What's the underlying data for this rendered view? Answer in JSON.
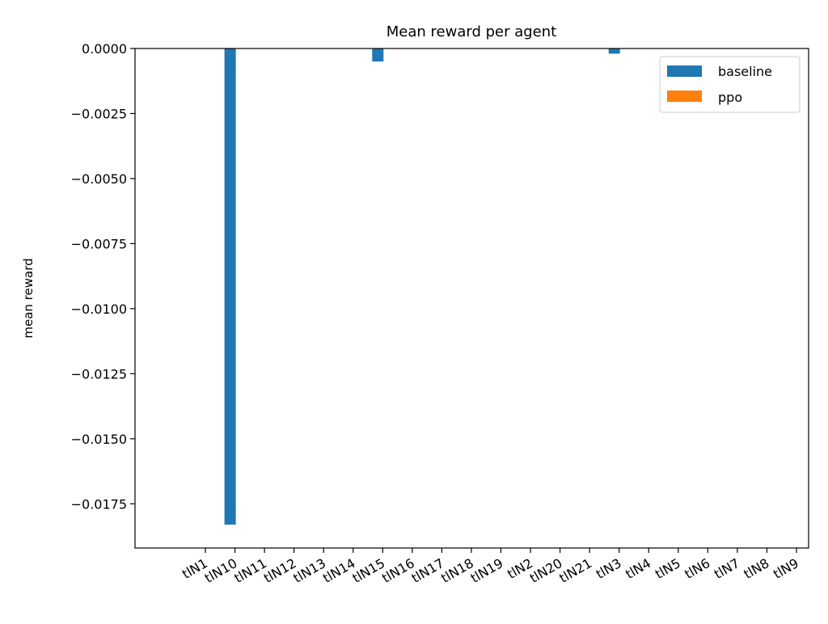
{
  "chart_data": {
    "type": "bar",
    "title": "Mean reward per agent",
    "xlabel": "",
    "ylabel": "mean reward",
    "categories": [
      "tlN1",
      "tlN10",
      "tlN11",
      "tlN12",
      "tlN13",
      "tlN14",
      "tlN15",
      "tlN16",
      "tlN17",
      "tlN18",
      "tlN19",
      "tlN2",
      "tlN20",
      "tlN21",
      "tlN3",
      "tlN4",
      "tlN5",
      "tlN6",
      "tlN7",
      "tlN8",
      "tlN9"
    ],
    "series": [
      {
        "name": "baseline",
        "color": "#1f77b4",
        "values": [
          0,
          -0.0183,
          0,
          0,
          0,
          0,
          -0.0005,
          0,
          0,
          0,
          0,
          0,
          0,
          0,
          -0.0002,
          0,
          0,
          0,
          0,
          0,
          0
        ]
      },
      {
        "name": "ppo",
        "color": "#ff7f0e",
        "values": [
          0,
          0,
          0,
          0,
          0,
          0,
          0,
          0,
          0,
          0,
          0,
          0,
          0,
          0,
          0,
          0,
          0,
          0,
          0,
          0,
          0
        ]
      }
    ],
    "ylim": [
      -0.0192,
      0.0
    ],
    "yticks": [
      "0.0000",
      "−0.0025",
      "−0.0050",
      "−0.0075",
      "−0.0100",
      "−0.0125",
      "−0.0150",
      "−0.0175"
    ],
    "ytick_values": [
      0,
      -0.0025,
      -0.005,
      -0.0075,
      -0.01,
      -0.0125,
      -0.015,
      -0.0175
    ],
    "grid": false,
    "legend_position": "top-right"
  }
}
